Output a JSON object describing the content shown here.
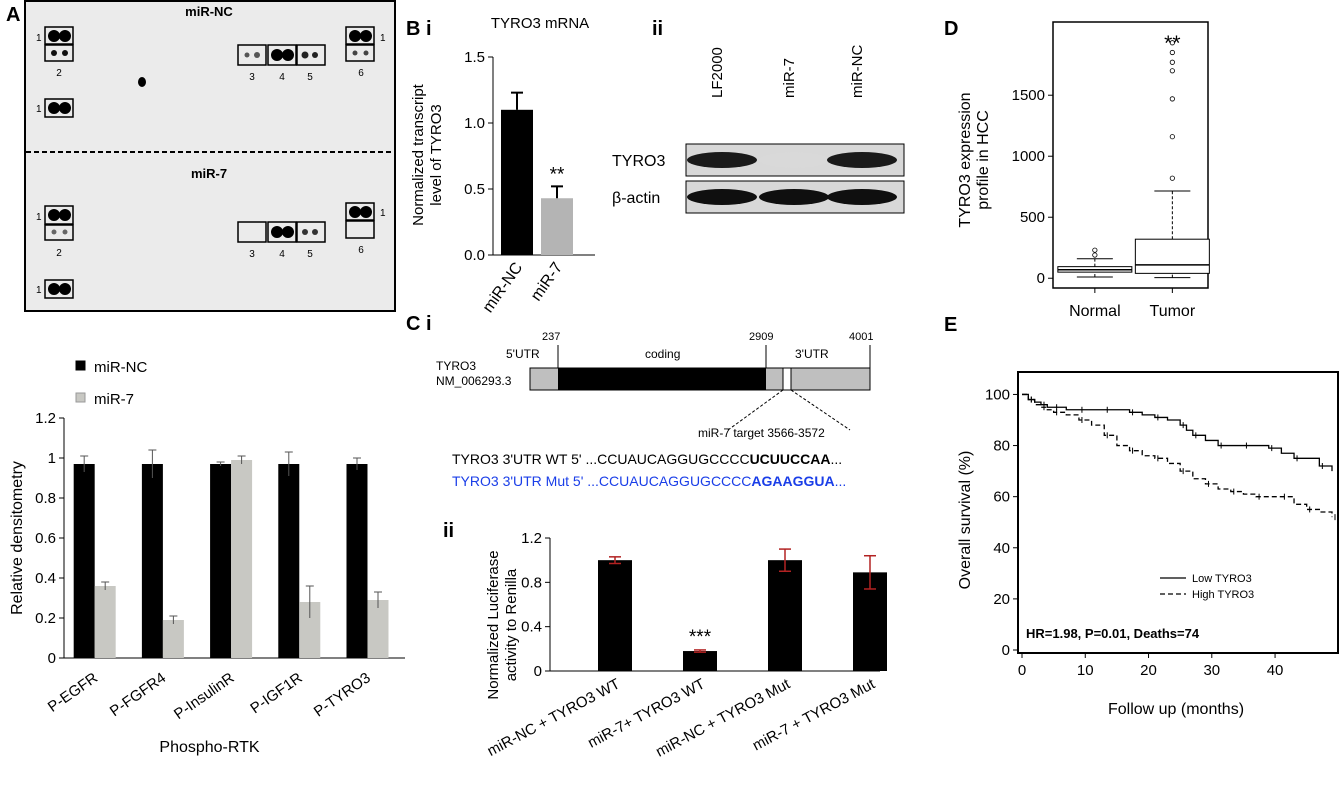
{
  "panels": {
    "A": "A",
    "B": "B",
    "B_i": "i",
    "B_ii": "ii",
    "C": "C",
    "C_i": "i",
    "C_ii": "ii",
    "D": "D",
    "E": "E"
  },
  "array": {
    "top_title": "miR-NC",
    "bottom_title": "miR-7",
    "top_labels": {
      "row1a": "1",
      "row1b": "1",
      "row1c": "1",
      "l2": "2",
      "l3": "3",
      "l4": "4",
      "l5": "5",
      "l6": "6"
    },
    "bottom_labels": {
      "row1a": "1",
      "row1b": "1",
      "row1c": "1",
      "l2": "2",
      "l3": "3",
      "l4": "4",
      "l5": "5",
      "l6": "6"
    }
  },
  "western": {
    "lanes": [
      "LF2000",
      "miR-7",
      "miR-NC"
    ],
    "rows": [
      "TYRO3",
      "β-actin"
    ],
    "band_intensity": {
      "TYRO3": [
        0.95,
        0.08,
        0.95
      ],
      "β-actin": [
        1,
        1,
        1
      ]
    }
  },
  "gene_map": {
    "name_line1": "TYRO3",
    "name_line2": "NM_006293.3",
    "utr5": "5'UTR",
    "coding": "coding",
    "utr3": "3'UTR",
    "pos_237": "237",
    "pos_2909": "2909",
    "pos_4001": "4001",
    "target": "miR-7 target 3566-3572",
    "wt_prefix": "TYRO3 3'UTR WT 5' ...CCUAUCAGGUGCCCC",
    "wt_bold": "UCUUCCAA",
    "wt_suffix": "...",
    "mut_prefix": "TYRO3 3'UTR Mut 5' ...CCUAUCAGGUGCCCC",
    "mut_bold": "AGAAGGUA",
    "mut_suffix": "...",
    "mut_color": "#1a3ee8"
  },
  "chart_data": [
    {
      "id": "A_bar",
      "type": "bar",
      "categories": [
        "P-EGFR",
        "P-FGFR4",
        "P-InsulinR",
        "P-IGF1R",
        "P-TYRO3"
      ],
      "series": [
        {
          "name": "miR-NC",
          "values": [
            0.97,
            0.97,
            0.97,
            0.97,
            0.97
          ],
          "errors": [
            0.04,
            0.07,
            0.01,
            0.06,
            0.03
          ],
          "color": "#000000"
        },
        {
          "name": "miR-7",
          "values": [
            0.36,
            0.19,
            0.99,
            0.28,
            0.29
          ],
          "errors": [
            0.02,
            0.02,
            0.02,
            0.08,
            0.04
          ],
          "color": "#c8c8c3"
        }
      ],
      "xlabel": "Phospho-RTK",
      "ylabel": "Relative densitometry",
      "ylim": [
        0,
        1.2
      ],
      "yticks": [
        "0",
        "0.2",
        "0.4",
        "0.6",
        "0.8",
        "1",
        "1.2"
      ],
      "legend": "top-left"
    },
    {
      "id": "B_bar",
      "type": "bar",
      "title": "TYRO3 mRNA",
      "categories": [
        "miR-NC",
        "miR-7"
      ],
      "values": [
        1.1,
        0.43
      ],
      "errors": [
        0.13,
        0.09
      ],
      "colors": [
        "#000000",
        "#b4b4b4"
      ],
      "ylabel_line1": "Normalized transcript",
      "ylabel_line2": "level of TYRO3",
      "ylim": [
        0,
        1.5
      ],
      "yticks": [
        "0.0",
        "0.5",
        "1.0",
        "1.5"
      ],
      "annotation": "**"
    },
    {
      "id": "C_bar",
      "type": "bar",
      "categories": [
        "miR-NC + TYRO3 WT",
        "miR-7+ TYRO3 WT",
        "miR-NC + TYRO3 Mut",
        "miR-7 + TYRO3 Mut"
      ],
      "values": [
        1.0,
        0.18,
        1.0,
        0.89
      ],
      "errors": [
        0.03,
        0.01,
        0.1,
        0.15
      ],
      "ylabel_line1": "Normalized Luciferase",
      "ylabel_line2": "activity to Renilla",
      "ylim": [
        0,
        1.2
      ],
      "yticks": [
        "0",
        "0.4",
        "0.8",
        "1.2"
      ],
      "annotation": "***"
    },
    {
      "id": "D_box",
      "type": "box",
      "categories": [
        "Normal",
        "Tumor"
      ],
      "boxes": [
        {
          "whisker_low": 10,
          "q1": 50,
          "median": 70,
          "q3": 95,
          "whisker_high": 160,
          "outliers": [
            190,
            230
          ]
        },
        {
          "whisker_low": 5,
          "q1": 40,
          "median": 110,
          "q3": 320,
          "whisker_high": 715,
          "outliers": [
            820,
            1160,
            1470,
            1700,
            1770,
            1850,
            1930
          ]
        }
      ],
      "ylabel_line1": "TYRO3 expression",
      "ylabel_line2": "profile in HCC",
      "ylim": [
        -80,
        2100
      ],
      "yticks": [
        "0",
        "500",
        "1000",
        "1500"
      ],
      "annotation": "**"
    },
    {
      "id": "E_km",
      "type": "line",
      "series": [
        {
          "name": "Low TYRO3",
          "dash": "solid",
          "x": [
            0,
            1,
            2,
            3,
            4,
            5,
            7,
            9,
            11,
            13,
            15,
            17,
            19,
            21,
            23,
            25,
            26,
            27,
            29,
            31,
            33,
            35,
            37,
            39,
            41,
            43,
            45,
            47,
            49
          ],
          "y": [
            100,
            98,
            97,
            96,
            95,
            95,
            94,
            94,
            94,
            94,
            94,
            93,
            92,
            91,
            90,
            88,
            86,
            84,
            82,
            80,
            80,
            80,
            80,
            79,
            77,
            75,
            75,
            72,
            70
          ]
        },
        {
          "name": "High TYRO3",
          "dash": "dashed",
          "x": [
            0,
            1,
            2,
            3,
            4,
            5,
            7,
            9,
            11,
            13,
            15,
            17,
            19,
            21,
            23,
            25,
            27,
            29,
            31,
            33,
            35,
            37,
            39,
            41,
            43,
            45,
            47,
            49
          ],
          "y": [
            100,
            98,
            96,
            95,
            94,
            93,
            92,
            90,
            88,
            84,
            80,
            78,
            76,
            75,
            73,
            70,
            67,
            65,
            63,
            62,
            61,
            60,
            60,
            60,
            57,
            55,
            54,
            52
          ]
        }
      ],
      "xlabel": "Follow up (months)",
      "ylabel": "Overall survival (%)",
      "xlim": [
        0,
        49
      ],
      "ylim": [
        0,
        108
      ],
      "xticks": [
        "0",
        "10",
        "20",
        "30",
        "40"
      ],
      "yticks": [
        "0",
        "20",
        "40",
        "60",
        "80",
        "100"
      ],
      "annotation": "HR=1.98, P=0.01, Deaths=74"
    }
  ]
}
